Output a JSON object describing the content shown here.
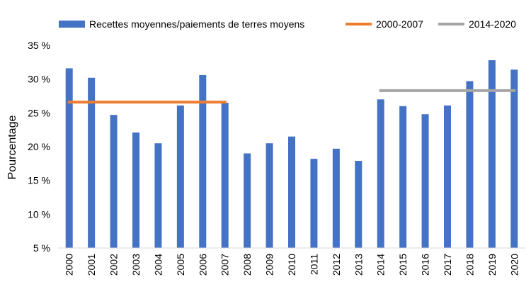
{
  "chart_data": {
    "type": "bar",
    "ylabel": "Pourcentage",
    "xlabel": "",
    "ylim": [
      5,
      35
    ],
    "yticks": [
      5,
      10,
      15,
      20,
      25,
      30,
      35
    ],
    "ytick_labels": [
      "5 %",
      "10 %",
      "15 %",
      "20 %",
      "25 %",
      "30 %",
      "35 %"
    ],
    "categories": [
      "2000",
      "2001",
      "2002",
      "2003",
      "2004",
      "2005",
      "2006",
      "2007",
      "2008",
      "2009",
      "2010",
      "2011",
      "2012",
      "2013",
      "2014",
      "2015",
      "2016",
      "2017",
      "2018",
      "2019",
      "2020"
    ],
    "series": [
      {
        "name": "Recettes moyennes/paiements de terres moyens",
        "color": "#4472C4",
        "values": [
          31.6,
          30.2,
          24.7,
          22.1,
          20.5,
          26.1,
          30.6,
          26.5,
          19.0,
          20.5,
          21.5,
          18.2,
          19.7,
          17.9,
          27.0,
          26.0,
          24.8,
          26.1,
          29.7,
          32.8,
          31.4
        ]
      }
    ],
    "reference_lines": [
      {
        "name": "2000-2007",
        "color": "#ED7D31",
        "value": 26.6,
        "from": "2000",
        "to": "2007"
      },
      {
        "name": "2014-2020",
        "color": "#A5A5A5",
        "value": 28.3,
        "from": "2014",
        "to": "2020"
      }
    ],
    "legend_position": "top",
    "grid": false
  }
}
